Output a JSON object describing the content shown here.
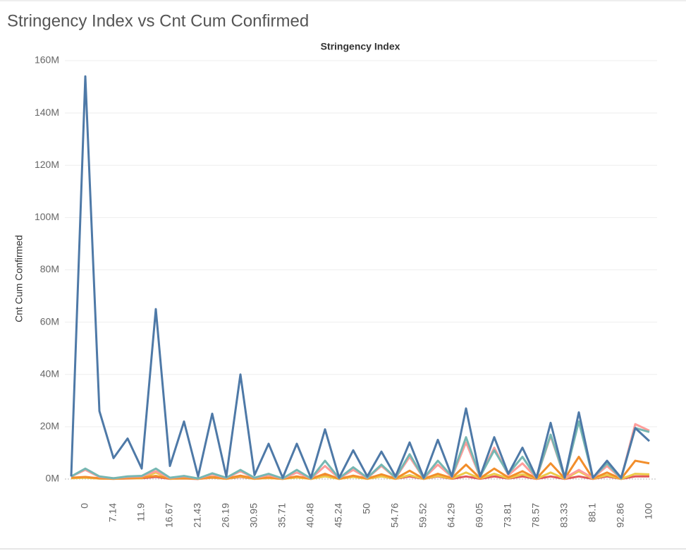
{
  "chart_data": {
    "type": "line",
    "title": "Stringency Index vs Cnt Cum Confirmed",
    "x_label": "Stringency Index",
    "y_label": "Cnt Cum Confirmed",
    "categories": [
      null,
      "0",
      null,
      "7.14",
      null,
      "11.9",
      null,
      "16.67",
      null,
      "21.43",
      null,
      "26.19",
      null,
      "30.95",
      null,
      "35.71",
      null,
      "40.48",
      null,
      "45.24",
      null,
      "50",
      null,
      "54.76",
      null,
      "59.52",
      null,
      "64.29",
      null,
      "69.05",
      null,
      "73.81",
      null,
      "78.57",
      null,
      "83.33",
      null,
      "88.1",
      null,
      "92.86",
      null,
      "100"
    ],
    "ylim": [
      0,
      160
    ],
    "yticks": [
      {
        "value": 0,
        "label": "0M"
      },
      {
        "value": 20,
        "label": "20M"
      },
      {
        "value": 40,
        "label": "40M"
      },
      {
        "value": 60,
        "label": "60M"
      },
      {
        "value": 80,
        "label": "80M"
      },
      {
        "value": 100,
        "label": "100M"
      },
      {
        "value": 120,
        "label": "120M"
      },
      {
        "value": 140,
        "label": "140M"
      },
      {
        "value": 160,
        "label": "160M"
      }
    ],
    "grid": true,
    "series": [
      {
        "color": "#e15759",
        "values": [
          0.5,
          0.6,
          0.2,
          0.1,
          0.2,
          0.3,
          0.8,
          0.1,
          0.2,
          0.05,
          0.5,
          0.1,
          0.8,
          0.1,
          0.4,
          0.05,
          1,
          0.05,
          1.5,
          0.05,
          1,
          0.1,
          1,
          0.1,
          1,
          0.05,
          1,
          0.1,
          1,
          0.1,
          1,
          0.2,
          1,
          0.05,
          1,
          0.05,
          1,
          0.05,
          1,
          0.05,
          1,
          1
        ]
      },
      {
        "color": "#edc948",
        "values": [
          0.3,
          0.5,
          0.2,
          0.1,
          0.3,
          0.3,
          2.5,
          0.1,
          0.3,
          0.1,
          0.6,
          0.1,
          1,
          0.1,
          0.4,
          0.05,
          0.6,
          0.05,
          1,
          0.05,
          0.8,
          0.1,
          1,
          0.1,
          1.5,
          0.05,
          1.2,
          0.2,
          2.5,
          0.2,
          2,
          0.3,
          1.8,
          0.1,
          2.5,
          0.1,
          3,
          0.1,
          1.5,
          0.05,
          2,
          1.8
        ]
      },
      {
        "color": "#f28e2b",
        "values": [
          0.5,
          0.8,
          0.3,
          0.1,
          0.4,
          0.5,
          1.2,
          0.2,
          0.5,
          0.1,
          0.8,
          0.2,
          1.3,
          0.2,
          0.6,
          0.1,
          1,
          0.1,
          2,
          0.1,
          1.3,
          0.2,
          1.8,
          0.2,
          3.2,
          0.1,
          2,
          0.4,
          5.5,
          0.3,
          4,
          0.6,
          3,
          0.2,
          6,
          0.2,
          8.5,
          0.2,
          2.5,
          0.1,
          7,
          6
        ]
      },
      {
        "color": "#ff9d9a",
        "values": [
          1,
          3.5,
          0.8,
          0.3,
          0.8,
          1,
          3,
          0.4,
          1,
          0.2,
          1.8,
          0.4,
          3,
          0.4,
          1.5,
          0.2,
          2.5,
          0.2,
          5,
          0.3,
          3.5,
          0.4,
          5,
          0.4,
          8.5,
          0.3,
          5.5,
          0.8,
          14,
          0.8,
          12,
          1.5,
          6,
          0.4,
          16.5,
          0.4,
          3.5,
          0.4,
          5,
          0.2,
          21,
          18.5
        ]
      },
      {
        "color": "#76b7b2",
        "values": [
          1,
          4,
          1,
          0.3,
          1,
          1.2,
          4,
          0.5,
          1.2,
          0.2,
          2.2,
          0.5,
          3.5,
          0.5,
          2,
          0.2,
          3.5,
          0.2,
          7,
          0.3,
          4.5,
          0.5,
          5.5,
          0.5,
          9.5,
          0.3,
          7,
          1,
          16,
          1,
          11,
          2,
          8.5,
          0.5,
          17,
          0.5,
          22,
          0.5,
          6,
          0.2,
          19.5,
          18
        ]
      },
      {
        "color": "#4e79a7",
        "values": [
          1,
          154,
          26,
          8,
          15.5,
          4,
          65,
          5,
          22,
          1,
          25,
          1,
          40,
          1.5,
          13.5,
          0.5,
          13.5,
          0.5,
          19,
          0.5,
          11,
          1,
          10.5,
          1,
          14,
          0.5,
          15,
          1,
          27,
          1,
          16,
          2,
          12,
          0.5,
          21.5,
          0.5,
          25.5,
          0.5,
          7,
          0.5,
          19.5,
          14.5
        ]
      }
    ]
  }
}
